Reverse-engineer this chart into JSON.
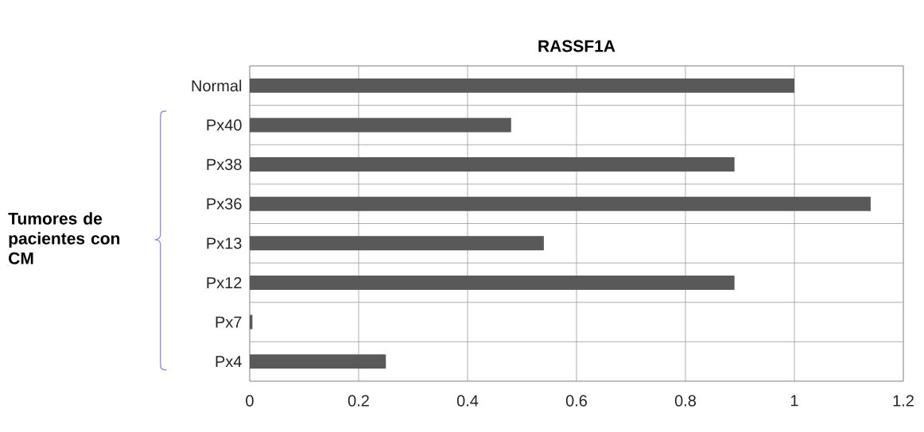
{
  "chart_data": {
    "type": "bar",
    "orientation": "horizontal",
    "title": "RASSF1A",
    "categories": [
      "Normal",
      "Px40",
      "Px38",
      "Px36",
      "Px13",
      "Px12",
      "Px7",
      "Px4"
    ],
    "values": [
      1.0,
      0.48,
      0.89,
      1.14,
      0.54,
      0.89,
      0.005,
      0.25
    ],
    "color": "#595959",
    "xlim": [
      0,
      1.2
    ],
    "xticks": [
      0,
      0.2,
      0.4,
      0.6,
      0.8,
      1,
      1.2
    ],
    "grid": true,
    "annotations": [
      "Tumores de pacientes con CM"
    ]
  }
}
